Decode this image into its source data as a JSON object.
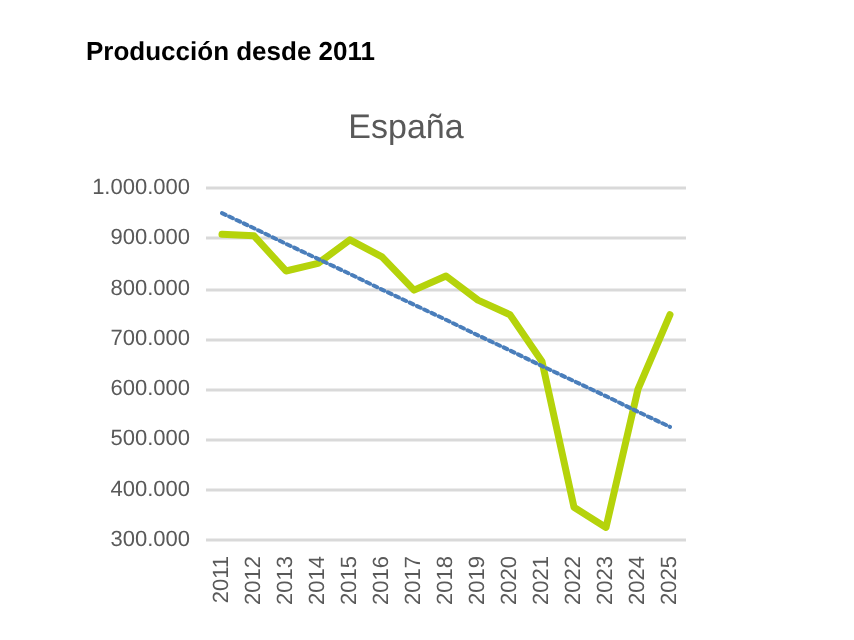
{
  "chart_data": {
    "type": "line",
    "title": "Producción desde 2011",
    "subtitle": "España",
    "categories": [
      "2011",
      "2012",
      "2013",
      "2014",
      "2015",
      "2016",
      "2017",
      "2018",
      "2019",
      "2020",
      "2021",
      "2022",
      "2023",
      "2024",
      "2025"
    ],
    "series": [
      {
        "color": "#b5d30b",
        "line_style": "solid",
        "values": [
          908000,
          905000,
          835000,
          850000,
          897000,
          863000,
          797000,
          825000,
          777000,
          748000,
          655000,
          365000,
          325000,
          600000,
          748000
        ]
      },
      {
        "color": "#4a7ebb",
        "line_style": "dotted",
        "values": [
          950000,
          920000,
          889000,
          859000,
          829000,
          798000,
          768000,
          738000,
          707000,
          677000,
          646000,
          616000,
          586000,
          555000,
          525000
        ]
      }
    ],
    "ylim": [
      300000,
      1000000
    ],
    "yticks": [
      {
        "value": 300000,
        "label": "300.000"
      },
      {
        "value": 400000,
        "label": "400.000"
      },
      {
        "value": 500000,
        "label": "500.000"
      },
      {
        "value": 600000,
        "label": "600.000"
      },
      {
        "value": 700000,
        "label": "700.000"
      },
      {
        "value": 800000,
        "label": "800.000"
      },
      {
        "value": 900000,
        "label": "900.000"
      },
      {
        "value": 1000000,
        "label": "1.000.000"
      }
    ],
    "grid": "y",
    "marker": "none"
  }
}
